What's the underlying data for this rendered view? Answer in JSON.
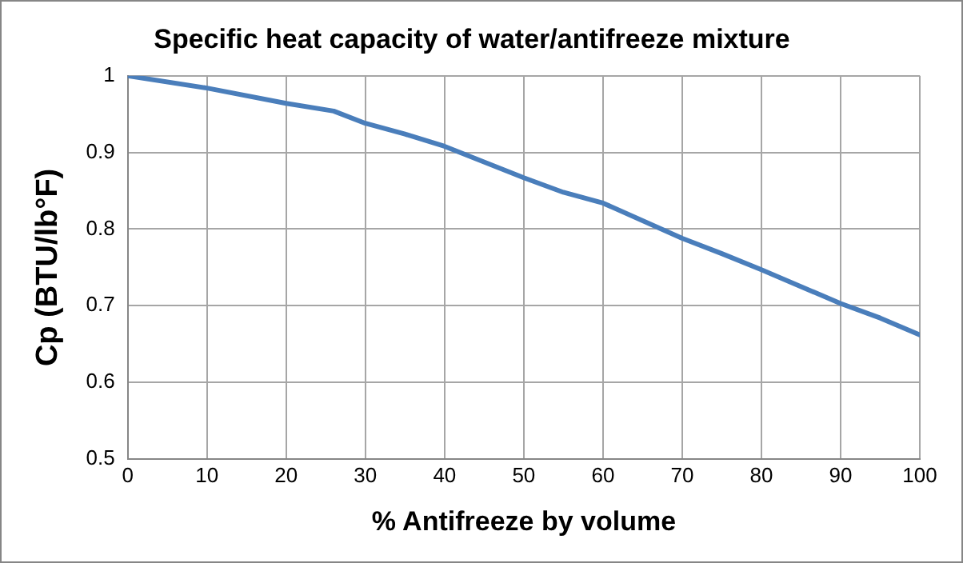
{
  "chart_data": {
    "type": "line",
    "title": "Specific heat capacity of water/antifreeze mixture",
    "xlabel": "% Antifreeze by volume",
    "ylabel": "Cp (BTU/lb°F)",
    "x": [
      0,
      10,
      20,
      26,
      30,
      35,
      40,
      50,
      55,
      60,
      70,
      75,
      80,
      90,
      95,
      100
    ],
    "series": [
      {
        "color": "#4a7ebb",
        "values": [
          1.0,
          0.984,
          0.964,
          0.954,
          0.938,
          0.924,
          0.908,
          0.867,
          0.848,
          0.834,
          0.788,
          0.768,
          0.747,
          0.703,
          0.684,
          0.662
        ]
      }
    ],
    "xlim": [
      0,
      100
    ],
    "xticks": [
      0,
      10,
      20,
      30,
      40,
      50,
      60,
      70,
      80,
      90,
      100
    ],
    "ylim": [
      0.5,
      1
    ],
    "yticks": [
      0.5,
      0.6,
      0.7,
      0.8,
      0.9,
      1
    ],
    "grid": true,
    "legend": false,
    "marker": "none",
    "line_style": "solid"
  }
}
